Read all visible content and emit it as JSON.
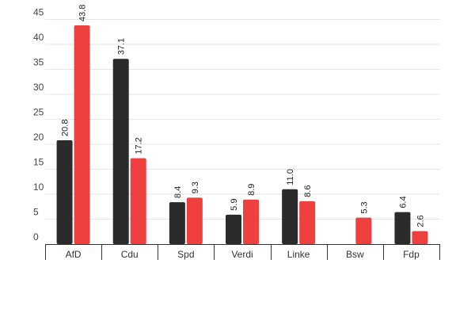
{
  "colors": {
    "series_a": "#2b2b2b",
    "series_b": "#ef4040",
    "grid": "#e6e6e6",
    "axis": "#333333"
  },
  "chart_data": {
    "type": "bar",
    "categories": [
      "AfD",
      "Cdu",
      "Spd",
      "Verdi",
      "Linke",
      "Bsw",
      "Fdp"
    ],
    "series": [
      {
        "values": [
          20.8,
          37.1,
          8.4,
          5.9,
          11.0,
          null,
          6.4
        ],
        "labels": [
          "20.8",
          "37.1",
          "8.4",
          "5.9",
          "11.0",
          "",
          "6.4"
        ]
      },
      {
        "values": [
          43.8,
          17.2,
          9.3,
          8.9,
          8.6,
          5.3,
          2.6
        ],
        "labels": [
          "43.8",
          "17.2",
          "9.3",
          "8.9",
          "8.6",
          "5.3",
          "2.6"
        ]
      }
    ],
    "yticks": [
      "0",
      "5",
      "10",
      "15",
      "20",
      "25",
      "30",
      "35",
      "40",
      "45"
    ],
    "ylim": [
      0,
      45
    ],
    "grid": true,
    "legend": "none"
  }
}
